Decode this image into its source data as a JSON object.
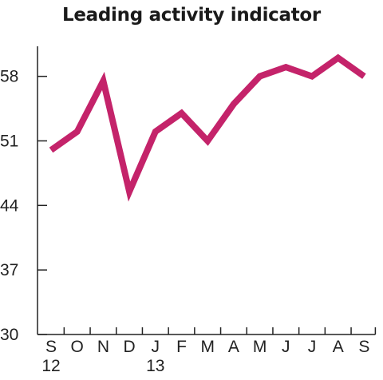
{
  "chart_data": {
    "type": "line",
    "title": "Leading activity indicator",
    "xlabel": "",
    "ylabel": "",
    "categories": [
      "S",
      "O",
      "N",
      "D",
      "J",
      "F",
      "M",
      "A",
      "M",
      "J",
      "J",
      "A",
      "S"
    ],
    "year_labels": [
      {
        "index": 0,
        "label": "12"
      },
      {
        "index": 4,
        "label": "13"
      }
    ],
    "series": [
      {
        "values": [
          50,
          52,
          57.5,
          45.5,
          52,
          54,
          51,
          55,
          58,
          59,
          58,
          60,
          58
        ]
      }
    ],
    "ylim": [
      30,
      61
    ],
    "yticks": [
      30,
      37,
      44,
      51,
      58
    ],
    "grid": false,
    "colors": {
      "line": "#c4236a",
      "axis": "#222222",
      "text": "#222222"
    }
  }
}
